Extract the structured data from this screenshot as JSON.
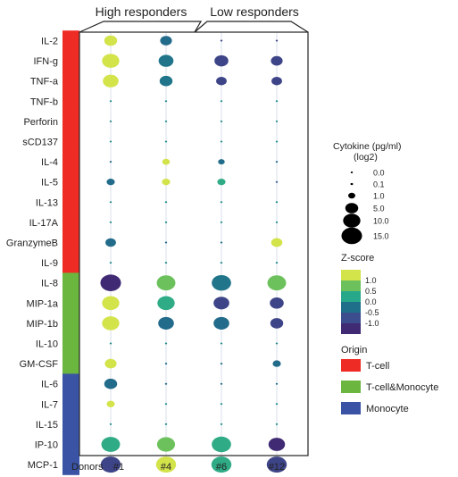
{
  "chart_data": {
    "type": "bubble-heatmap",
    "group_labels": [
      "High responders",
      "Low responders"
    ],
    "column_axis_label": "Donors",
    "columns": [
      "#1",
      "#4",
      "#6",
      "#12"
    ],
    "rows": [
      {
        "name": "IL-2",
        "origin": "T-cell",
        "cells": [
          {
            "size": 5.0,
            "z": 1.0
          },
          {
            "size": 4.0,
            "z": -0.3
          },
          {
            "size": 0.05,
            "z": -0.8
          },
          {
            "size": 0.05,
            "z": -0.8
          }
        ]
      },
      {
        "name": "IFN-g",
        "origin": "T-cell",
        "cells": [
          {
            "size": 10.0,
            "z": 1.0
          },
          {
            "size": 7.0,
            "z": -0.2
          },
          {
            "size": 6.0,
            "z": -0.8
          },
          {
            "size": 4.0,
            "z": -0.8
          }
        ]
      },
      {
        "name": "TNF-a",
        "origin": "T-cell",
        "cells": [
          {
            "size": 8.0,
            "z": 1.0
          },
          {
            "size": 5.0,
            "z": -0.2
          },
          {
            "size": 3.0,
            "z": -0.8
          },
          {
            "size": 3.0,
            "z": -0.8
          }
        ]
      },
      {
        "name": "TNF-b",
        "origin": "T-cell",
        "cells": [
          {
            "size": 0.05,
            "z": 0.0
          },
          {
            "size": 0.05,
            "z": 0.0
          },
          {
            "size": 0.05,
            "z": 0.0
          },
          {
            "size": 0.05,
            "z": 0.0
          }
        ]
      },
      {
        "name": "Perforin",
        "origin": "T-cell",
        "cells": [
          {
            "size": 0.05,
            "z": 0.0
          },
          {
            "size": 0.05,
            "z": 0.0
          },
          {
            "size": 0.05,
            "z": 0.0
          },
          {
            "size": 0.05,
            "z": 0.0
          }
        ]
      },
      {
        "name": "sCD137",
        "origin": "T-cell",
        "cells": [
          {
            "size": 0.05,
            "z": 0.0
          },
          {
            "size": 0.05,
            "z": 0.0
          },
          {
            "size": 0.05,
            "z": 0.0
          },
          {
            "size": 0.05,
            "z": 0.0
          }
        ]
      },
      {
        "name": "IL-4",
        "origin": "T-cell",
        "cells": [
          {
            "size": 0.05,
            "z": -0.3
          },
          {
            "size": 1.2,
            "z": 1.0
          },
          {
            "size": 0.8,
            "z": -0.3
          },
          {
            "size": 0.05,
            "z": -0.3
          }
        ]
      },
      {
        "name": "IL-5",
        "origin": "T-cell",
        "cells": [
          {
            "size": 1.5,
            "z": -0.3
          },
          {
            "size": 1.5,
            "z": 1.0
          },
          {
            "size": 1.5,
            "z": 0.3
          },
          {
            "size": 0.05,
            "z": -0.5
          }
        ]
      },
      {
        "name": "IL-13",
        "origin": "T-cell",
        "cells": [
          {
            "size": 0.05,
            "z": 0.0
          },
          {
            "size": 0.05,
            "z": 0.0
          },
          {
            "size": 0.05,
            "z": 0.0
          },
          {
            "size": 0.05,
            "z": 0.0
          }
        ]
      },
      {
        "name": "IL-17A",
        "origin": "T-cell",
        "cells": [
          {
            "size": 0.05,
            "z": 0.0
          },
          {
            "size": 0.05,
            "z": 0.0
          },
          {
            "size": 0.05,
            "z": 0.0
          },
          {
            "size": 0.05,
            "z": 0.0
          }
        ]
      },
      {
        "name": "GranzymeB",
        "origin": "T-cell",
        "cells": [
          {
            "size": 3.0,
            "z": -0.3
          },
          {
            "size": 0.05,
            "z": -0.3
          },
          {
            "size": 0.05,
            "z": -0.3
          },
          {
            "size": 3.5,
            "z": 1.0
          }
        ]
      },
      {
        "name": "IL-9",
        "origin": "T-cell",
        "cells": [
          {
            "size": 0.05,
            "z": 0.0
          },
          {
            "size": 0.05,
            "z": 0.0
          },
          {
            "size": 0.05,
            "z": 0.0
          },
          {
            "size": 0.05,
            "z": 0.0
          }
        ]
      },
      {
        "name": "IL-8",
        "origin": "T-cell&Monocyte",
        "cells": [
          {
            "size": 15.0,
            "z": -1.1
          },
          {
            "size": 12.0,
            "z": 0.7
          },
          {
            "size": 13.0,
            "z": -0.2
          },
          {
            "size": 12.0,
            "z": 0.7
          }
        ]
      },
      {
        "name": "MIP-1a",
        "origin": "T-cell&Monocyte",
        "cells": [
          {
            "size": 10.0,
            "z": 1.0
          },
          {
            "size": 10.0,
            "z": 0.3
          },
          {
            "size": 8.0,
            "z": -0.8
          },
          {
            "size": 6.0,
            "z": -0.8
          }
        ]
      },
      {
        "name": "MIP-1b",
        "origin": "T-cell&Monocyte",
        "cells": [
          {
            "size": 10.0,
            "z": 1.0
          },
          {
            "size": 8.0,
            "z": -0.3
          },
          {
            "size": 8.0,
            "z": -0.3
          },
          {
            "size": 5.0,
            "z": -0.8
          }
        ]
      },
      {
        "name": "IL-10",
        "origin": "T-cell&Monocyte",
        "cells": [
          {
            "size": 0.05,
            "z": 0.0
          },
          {
            "size": 0.05,
            "z": 0.0
          },
          {
            "size": 0.05,
            "z": 0.0
          },
          {
            "size": 0.05,
            "z": 0.0
          }
        ]
      },
      {
        "name": "GM-CSF",
        "origin": "T-cell&Monocyte",
        "cells": [
          {
            "size": 4.0,
            "z": 1.0
          },
          {
            "size": 0.05,
            "z": -0.3
          },
          {
            "size": 0.05,
            "z": -0.3
          },
          {
            "size": 1.5,
            "z": -0.3
          }
        ]
      },
      {
        "name": "IL-6",
        "origin": "Monocyte",
        "cells": [
          {
            "size": 5.0,
            "z": -0.3
          },
          {
            "size": 0.05,
            "z": -0.3
          },
          {
            "size": 0.05,
            "z": -0.3
          },
          {
            "size": 0.05,
            "z": -0.3
          }
        ]
      },
      {
        "name": "IL-7",
        "origin": "Monocyte",
        "cells": [
          {
            "size": 1.5,
            "z": 1.0
          },
          {
            "size": 0.05,
            "z": 0.0
          },
          {
            "size": 0.05,
            "z": 0.0
          },
          {
            "size": 0.05,
            "z": 0.0
          }
        ]
      },
      {
        "name": "IL-15",
        "origin": "Monocyte",
        "cells": [
          {
            "size": 0.05,
            "z": 0.0
          },
          {
            "size": 0.05,
            "z": 0.0
          },
          {
            "size": 0.05,
            "z": 0.0
          },
          {
            "size": 0.05,
            "z": 0.0
          }
        ]
      },
      {
        "name": "IP-10",
        "origin": "Monocyte",
        "cells": [
          {
            "size": 12.0,
            "z": 0.3
          },
          {
            "size": 11.0,
            "z": 0.7
          },
          {
            "size": 13.0,
            "z": 0.3
          },
          {
            "size": 9.0,
            "z": -1.1
          }
        ]
      },
      {
        "name": "MCP-1",
        "origin": "Monocyte",
        "cells": [
          {
            "size": 14.0,
            "z": -0.8
          },
          {
            "size": 14.0,
            "z": 1.0
          },
          {
            "size": 14.0,
            "z": 0.3
          },
          {
            "size": 14.0,
            "z": -0.8
          }
        ]
      }
    ],
    "size_legend": {
      "title_line1": "Cytokine (pg/ml)",
      "title_line2": "(log2)",
      "values": [
        0.0,
        0.1,
        1.0,
        5.0,
        10.0,
        15.0
      ],
      "labels": [
        "0.0",
        "0.1",
        "1.0",
        "5.0",
        "10.0",
        "15.0"
      ]
    },
    "color_legend": {
      "title": "Z-score",
      "labels": [
        "1.0",
        "0.5",
        "0.0",
        "-0.5",
        "-1.0"
      ],
      "colors": [
        "#d3e34a",
        "#6cc15c",
        "#27a88a",
        "#1f6f8b",
        "#3c4d8d",
        "#3f2a73"
      ]
    },
    "origin_legend": {
      "title": "Origin",
      "items": [
        {
          "name": "T-cell",
          "color": "#ee2b24"
        },
        {
          "name": "T-cell&Monocyte",
          "color": "#6ab63e"
        },
        {
          "name": "Monocyte",
          "color": "#3a53a4"
        }
      ]
    }
  }
}
